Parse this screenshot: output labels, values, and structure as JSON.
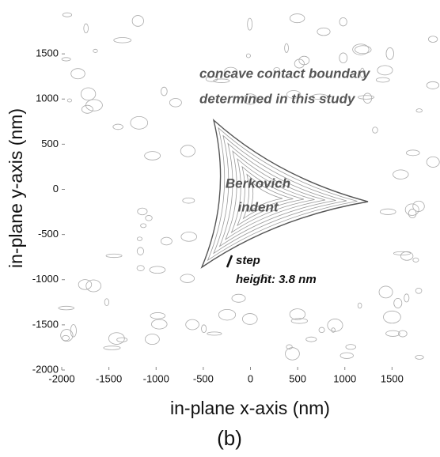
{
  "chart_data": {
    "type": "contour",
    "x_label": "in-plane x-axis (nm)",
    "y_label": "in-plane y-axis (nm)",
    "caption": "(b)",
    "xlim": [
      -2000,
      2000
    ],
    "ylim": [
      -2000,
      2000
    ],
    "xticks": [
      -2000,
      -1500,
      -1000,
      -500,
      0,
      500,
      1000,
      1500
    ],
    "yticks": [
      -2000,
      -1500,
      -1000,
      -500,
      0,
      500,
      1000,
      1500
    ],
    "annotations": [
      {
        "lines": [
          "concave contact boundary",
          "determined in this study"
        ]
      },
      {
        "lines": [
          "Berkovich",
          "indent"
        ]
      },
      {
        "lines": [
          "step",
          "height: 3.8 nm"
        ]
      }
    ]
  }
}
